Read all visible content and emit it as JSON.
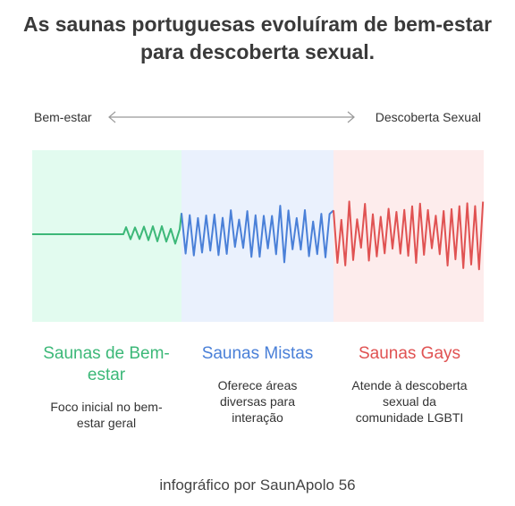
{
  "title": "As saunas portuguesas evoluíram de bem-estar para descoberta sexual.",
  "axis": {
    "left_label": "Bem-estar",
    "right_label": "Descoberta Sexual"
  },
  "sections": [
    {
      "heading": "Saunas de Bem-estar",
      "description": "Foco inicial no bem-estar geral",
      "color": "#3cb878",
      "background": "#e2fbef"
    },
    {
      "heading": "Saunas Mistas",
      "description": "Oferece áreas diversas para interação",
      "color": "#4a80d8",
      "background": "#eaf1fd"
    },
    {
      "heading": "Saunas Gays",
      "description": "Atende à descoberta sexual da comunidade LGBTI",
      "color": "#e05252",
      "background": "#fdecec"
    }
  ],
  "footer": "infográfico por SaunApolo 56"
}
